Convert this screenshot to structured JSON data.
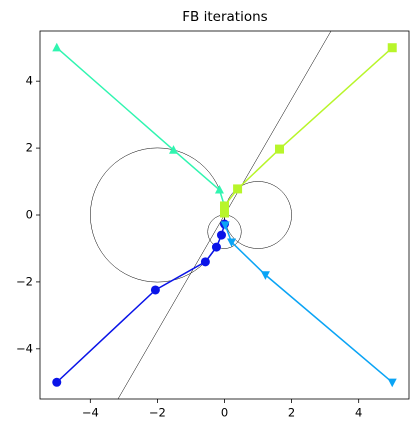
{
  "chart_data": {
    "type": "line",
    "title": "FB iterations",
    "xlim": [
      -5.5,
      5.5
    ],
    "ylim": [
      -5.5,
      5.5
    ],
    "xticks": [
      {
        "value": -4,
        "label": "−4"
      },
      {
        "value": -2,
        "label": "−2"
      },
      0,
      2,
      4
    ],
    "yticks": [
      {
        "value": -4,
        "label": "−4"
      },
      {
        "value": -2,
        "label": "−2"
      },
      0,
      2,
      4
    ],
    "grid": false,
    "circles": [
      {
        "cx": -2,
        "cy": 0,
        "r": 2
      },
      {
        "cx": 1,
        "cy": 0,
        "r": 1
      },
      {
        "cx": 0,
        "cy": -0.5,
        "r": 0.5
      }
    ],
    "reference_line": {
      "x": [
        -3.175,
        3.175
      ],
      "y": [
        -5.5,
        5.5
      ]
    },
    "series": [
      {
        "color": "#0a14e8",
        "marker": "circle",
        "x": [
          -5,
          -2.06,
          -0.57,
          -0.24,
          -0.09,
          0
        ],
        "values": [
          -5,
          -2.24,
          -1.4,
          -0.96,
          -0.6,
          -0.27
        ]
      },
      {
        "color": "#0aa4f5",
        "marker": "triangle-down",
        "x": [
          5,
          1.22,
          0.21,
          0.02
        ],
        "values": [
          -5,
          -1.79,
          -0.81,
          -0.3
        ]
      },
      {
        "color": "#30f5b0",
        "marker": "triangle-up",
        "x": [
          -5,
          -1.52,
          -0.15,
          0
        ],
        "values": [
          5,
          1.94,
          0.75,
          0.27
        ]
      },
      {
        "color": "#b8f52a",
        "marker": "square",
        "x": [
          5,
          1.64,
          0.39,
          0,
          0
        ],
        "values": [
          5,
          1.97,
          0.78,
          0.27,
          0.06
        ]
      }
    ]
  }
}
